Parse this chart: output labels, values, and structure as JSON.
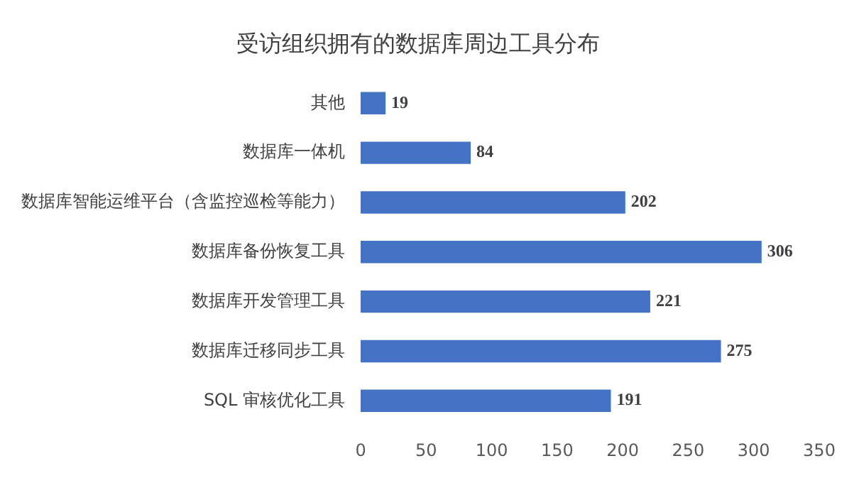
{
  "chart_data": {
    "type": "bar",
    "orientation": "horizontal",
    "title": "受访组织拥有的数据库周边工具分布",
    "categories": [
      "其他",
      "数据库一体机",
      "数据库智能运维平台（含监控巡检等能力）",
      "数据库备份恢复工具",
      "数据库开发管理工具",
      "数据库迁移同步工具",
      "SQL 审核优化工具"
    ],
    "values": [
      19,
      84,
      202,
      306,
      221,
      275,
      191
    ],
    "color": "#4472c4",
    "xlim": [
      0,
      350
    ],
    "xticks": [
      0,
      50,
      100,
      150,
      200,
      250,
      300,
      350
    ],
    "grid": false,
    "legend": false,
    "data_labels": true
  }
}
